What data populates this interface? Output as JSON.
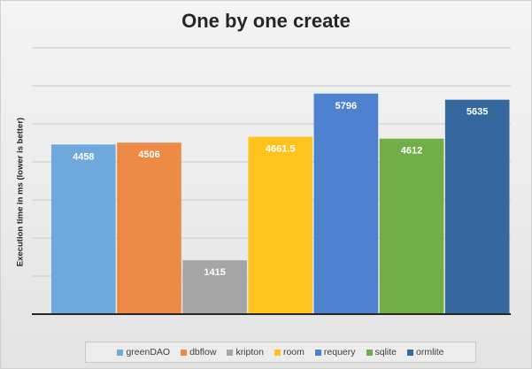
{
  "chart_data": {
    "type": "bar",
    "title": "One by one create",
    "xlabel": "",
    "ylabel": "Execution time in ms (lower is better)",
    "ylim": [
      0,
      7000
    ],
    "grid": true,
    "legend_position": "bottom",
    "categories": [
      "greenDAO",
      "dbflow",
      "kripton",
      "room",
      "requery",
      "sqlite",
      "ormlite"
    ],
    "values": [
      4458,
      4506,
      1415,
      4661.5,
      5796,
      4612,
      5635
    ],
    "data_labels": [
      "4458",
      "4506",
      "1415",
      "4661.5",
      "5796",
      "4612",
      "5635"
    ],
    "colors": [
      "#6fa8dc",
      "#ed8a46",
      "#a5a5a5",
      "#ffc21f",
      "#4f81d1",
      "#71ae48",
      "#35689c"
    ]
  }
}
